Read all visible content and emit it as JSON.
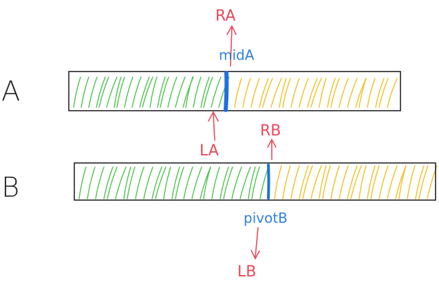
{
  "rows": [
    {
      "label": "A",
      "divider_label": "midA",
      "up_label": "RA",
      "down_label": "LA"
    },
    {
      "label": "B",
      "divider_label": "pivotB",
      "up_label": "RB",
      "down_label": "LB"
    }
  ],
  "colors": {
    "left_hatch": "#4cc44c",
    "right_hatch": "#f0c020",
    "divider": "#1f6fe0",
    "arrow": "#e8475a",
    "box": "#222222"
  }
}
